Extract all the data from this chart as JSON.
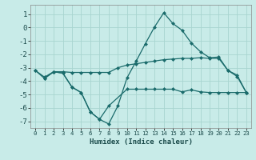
{
  "xlabel": "Humidex (Indice chaleur)",
  "background_color": "#c8ebe8",
  "grid_color": "#a8d5d0",
  "line_color": "#1a6b6b",
  "xlim": [
    -0.5,
    23.5
  ],
  "ylim": [
    -7.5,
    1.7
  ],
  "yticks": [
    1,
    0,
    -1,
    -2,
    -3,
    -4,
    -5,
    -6,
    -7
  ],
  "xticks": [
    0,
    1,
    2,
    3,
    4,
    5,
    6,
    7,
    8,
    9,
    10,
    11,
    12,
    13,
    14,
    15,
    16,
    17,
    18,
    19,
    20,
    21,
    22,
    23
  ],
  "line1_x": [
    0,
    1,
    2,
    3,
    4,
    5,
    6,
    7,
    8,
    9,
    10,
    11,
    12,
    13,
    14,
    15,
    16,
    17,
    18,
    19,
    20,
    21,
    22,
    23
  ],
  "line1_y": [
    -3.2,
    -3.7,
    -3.3,
    -3.3,
    -3.35,
    -3.35,
    -3.35,
    -3.35,
    -3.35,
    -3.0,
    -2.8,
    -2.7,
    -2.6,
    -2.5,
    -2.4,
    -2.35,
    -2.3,
    -2.3,
    -2.25,
    -2.3,
    -2.3,
    -3.2,
    -3.55,
    -4.85
  ],
  "line2_x": [
    0,
    1,
    2,
    3,
    4,
    5,
    6,
    7,
    8,
    9,
    10,
    11,
    12,
    13,
    14,
    15,
    16,
    17,
    18,
    19,
    20,
    21,
    22,
    23
  ],
  "line2_y": [
    -3.2,
    -3.8,
    -3.3,
    -3.4,
    -4.45,
    -4.85,
    -6.3,
    -6.85,
    -7.2,
    -5.85,
    -3.75,
    -2.5,
    -1.2,
    0.05,
    1.1,
    0.3,
    -0.2,
    -1.15,
    -1.8,
    -2.25,
    -2.2,
    -3.2,
    -3.65,
    -4.85
  ],
  "line3_x": [
    1,
    2,
    3,
    4,
    5,
    6,
    7,
    8,
    10,
    11,
    12,
    13,
    14,
    15,
    16,
    17,
    18,
    19,
    20,
    21,
    22,
    23
  ],
  "line3_y": [
    -3.8,
    -3.3,
    -3.4,
    -4.45,
    -4.85,
    -6.3,
    -6.85,
    -5.85,
    -4.6,
    -4.6,
    -4.6,
    -4.6,
    -4.6,
    -4.6,
    -4.8,
    -4.65,
    -4.8,
    -4.85,
    -4.85,
    -4.85,
    -4.85,
    -4.85
  ]
}
